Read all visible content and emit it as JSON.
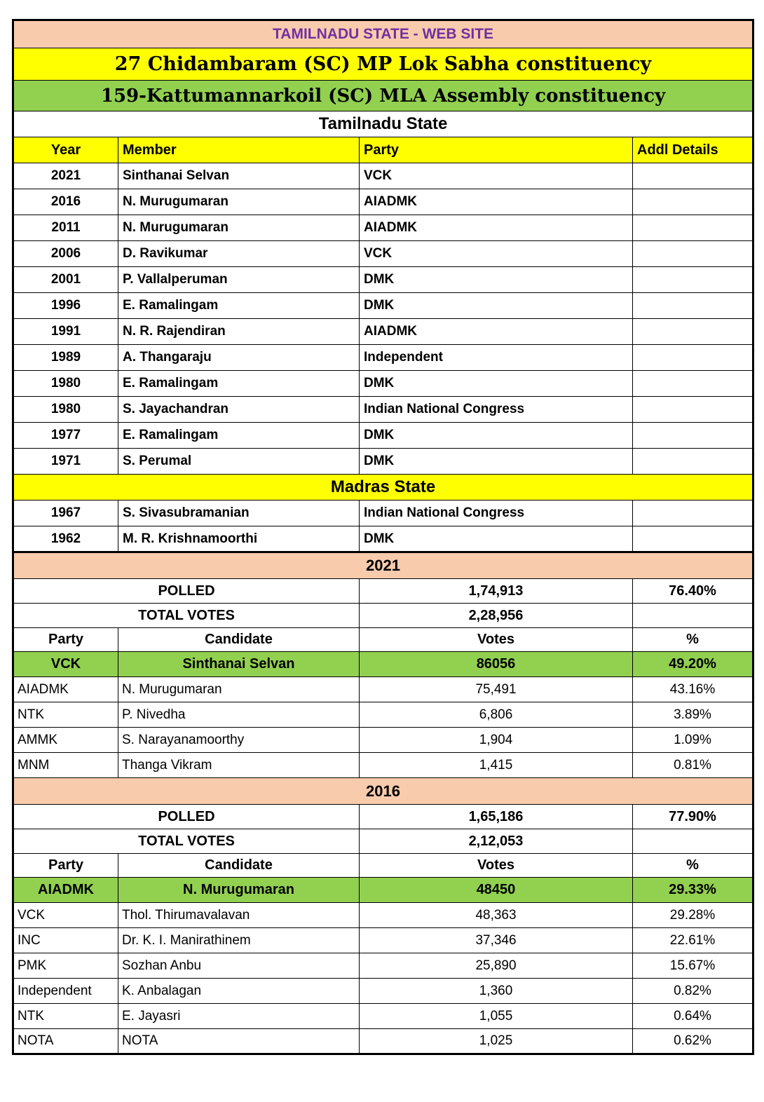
{
  "header": {
    "site_title": "TAMILNADU STATE - WEB SITE",
    "mp_constituency": "27 Chidambaram (SC)  MP Lok Sabha constituency",
    "mla_constituency": "159-Kattumannarkoil (SC) MLA Assembly constituency"
  },
  "colors": {
    "peach_band": "#F8CBAD",
    "yellow_band": "#FFFF00",
    "green_band": "#92D050",
    "site_title_text": "#7030A0"
  },
  "members": {
    "tamilnadu_title": "Tamilnadu State",
    "madras_title": "Madras State",
    "headers": [
      "Year",
      "Member",
      "Party",
      "Addl Details"
    ],
    "tamilnadu_rows": [
      {
        "year": "2021",
        "member": "Sinthanai Selvan",
        "party": "VCK",
        "addl": ""
      },
      {
        "year": "2016",
        "member": "N. Murugumaran",
        "party": "AIADMK",
        "addl": ""
      },
      {
        "year": "2011",
        "member": "N. Murugumaran",
        "party": "AIADMK",
        "addl": ""
      },
      {
        "year": "2006",
        "member": "D. Ravikumar",
        "party": "VCK",
        "addl": ""
      },
      {
        "year": "2001",
        "member": "P. Vallalperuman",
        "party": "DMK",
        "addl": ""
      },
      {
        "year": "1996",
        "member": "E. Ramalingam",
        "party": "DMK",
        "addl": ""
      },
      {
        "year": "1991",
        "member": "N. R. Rajendiran",
        "party": "AIADMK",
        "addl": ""
      },
      {
        "year": "1989",
        "member": "A. Thangaraju",
        "party": "Independent",
        "addl": ""
      },
      {
        "year": "1980",
        "member": "E. Ramalingam",
        "party": "DMK",
        "addl": ""
      },
      {
        "year": "1980",
        "member": "S. Jayachandran",
        "party": "Indian National Congress",
        "addl": ""
      },
      {
        "year": "1977",
        "member": "E. Ramalingam",
        "party": "DMK",
        "addl": ""
      },
      {
        "year": "1971",
        "member": "S. Perumal",
        "party": "DMK",
        "addl": ""
      }
    ],
    "madras_rows": [
      {
        "year": "1967",
        "member": "S. Sivasubramanian",
        "party": "Indian National Congress",
        "addl": ""
      },
      {
        "year": "1962",
        "member": "M. R. Krishnamoorthi",
        "party": "DMK",
        "addl": ""
      }
    ]
  },
  "elections": [
    {
      "title": "2021",
      "polled_label": "POLLED",
      "polled_votes": "1,74,913",
      "polled_pct": "76.40%",
      "total_label": "TOTAL VOTES",
      "total_votes": "2,28,956",
      "headers": [
        "Party",
        "Candidate",
        "Votes",
        "%"
      ],
      "winner": {
        "party": "VCK",
        "candidate": "Sinthanai Selvan",
        "votes": "86056",
        "pct": "49.20%"
      },
      "rows": [
        {
          "party": "AIADMK",
          "candidate": "N. Murugumaran",
          "votes": "75,491",
          "pct": "43.16%"
        },
        {
          "party": "NTK",
          "candidate": "P. Nivedha",
          "votes": "6,806",
          "pct": "3.89%"
        },
        {
          "party": "AMMK",
          "candidate": "S. Narayanamoorthy",
          "votes": "1,904",
          "pct": "1.09%"
        },
        {
          "party": "MNM",
          "candidate": "Thanga Vikram",
          "votes": "1,415",
          "pct": "0.81%"
        }
      ]
    },
    {
      "title": "2016",
      "polled_label": "POLLED",
      "polled_votes": "1,65,186",
      "polled_pct": "77.90%",
      "total_label": "TOTAL VOTES",
      "total_votes": "2,12,053",
      "headers": [
        "Party",
        "Candidate",
        "Votes",
        "%"
      ],
      "winner": {
        "party": "AIADMK",
        "candidate": "N. Murugumaran",
        "votes": "48450",
        "pct": "29.33%"
      },
      "rows": [
        {
          "party": "VCK",
          "candidate": "Thol. Thirumavalavan",
          "votes": "48,363",
          "pct": "29.28%"
        },
        {
          "party": "INC",
          "candidate": "Dr. K. I. Manirathinem",
          "votes": "37,346",
          "pct": "22.61%"
        },
        {
          "party": "PMK",
          "candidate": "Sozhan Anbu",
          "votes": "25,890",
          "pct": "15.67%"
        },
        {
          "party": "Independent",
          "candidate": "K. Anbalagan",
          "votes": "1,360",
          "pct": "0.82%"
        },
        {
          "party": "NTK",
          "candidate": "E. Jayasri",
          "votes": "1,055",
          "pct": "0.64%"
        },
        {
          "party": "NOTA",
          "candidate": "NOTA",
          "votes": "1,025",
          "pct": "0.62%"
        }
      ]
    }
  ]
}
